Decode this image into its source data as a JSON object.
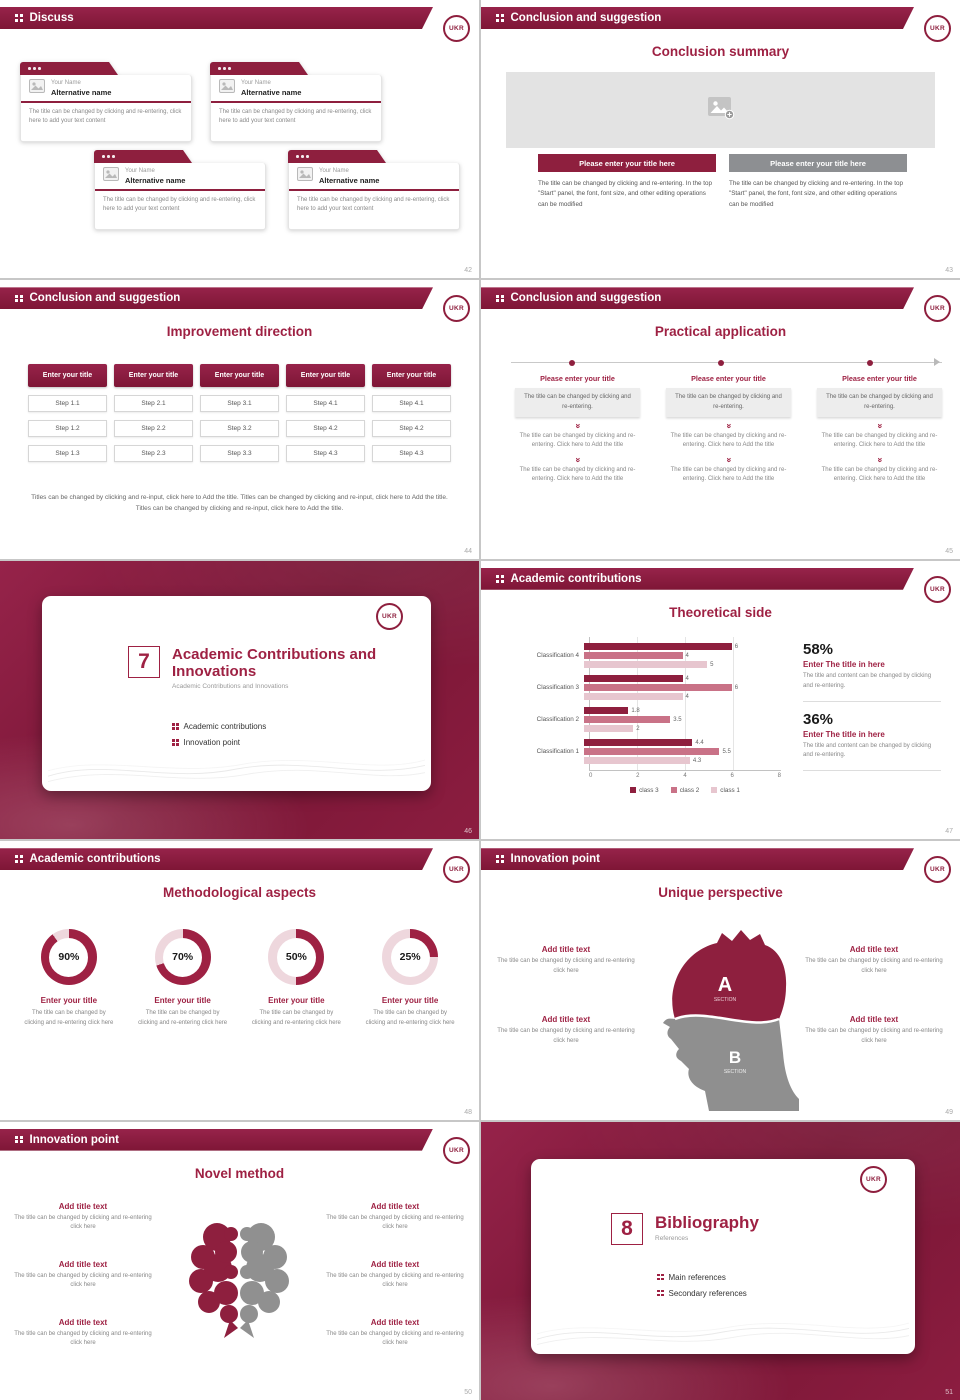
{
  "logo_text": "UKR",
  "colors": {
    "accent": "#9e2143",
    "header_maroon": "#8e1f3e",
    "button_gray": "#8d8f92",
    "donut_track": "#eed7dd",
    "bar_dark": "#8e1f3e",
    "bar_mid": "#c97287",
    "bar_light": "#e7c6cf"
  },
  "slide01": {
    "header": "Discuss",
    "page": "42",
    "card": {
      "name_label": "Your Name",
      "alt_name": "Alternative name",
      "body": "The title can be changed by clicking and re-entering, click here to add your text content"
    }
  },
  "slide02": {
    "header": "Conclusion and suggestion",
    "page": "43",
    "title": "Conclusion summary",
    "button_left": "Please enter your title here",
    "button_right": "Please enter your title here",
    "body": "The title can be changed by clicking and re-entering. In the top \"Start\" panel, the font, font size, and other editing operations can be modified"
  },
  "slide03": {
    "header": "Conclusion and suggestion",
    "page": "44",
    "title": "Improvement direction",
    "columns": [
      {
        "button": "Enter your title",
        "steps": [
          "Step 1.1",
          "Step 1.2",
          "Step 1.3"
        ]
      },
      {
        "button": "Enter your title",
        "steps": [
          "Step 2.1",
          "Step 2.2",
          "Step 2.3"
        ]
      },
      {
        "button": "Enter your title",
        "steps": [
          "Step 3.1",
          "Step 3.2",
          "Step 3.3"
        ]
      },
      {
        "button": "Enter your title",
        "steps": [
          "Step 4.1",
          "Step 4.2",
          "Step 4.3"
        ]
      },
      {
        "button": "Enter your title",
        "steps": [
          "Step 4.1",
          "Step 4.2",
          "Step 4.3"
        ]
      }
    ],
    "footer": "Titles can be changed by clicking and re-input, click here to Add the title. Titles can be changed by clicking and re-input, click here to Add the title. Titles can be changed by clicking and re-input, click here to Add the title."
  },
  "slide04": {
    "header": "Conclusion and suggestion",
    "page": "45",
    "title": "Practical application",
    "col_title": "Please enter your title",
    "col_box": "The title can be changed by clicking and re-entering.",
    "col_step": "The title can be changed by clicking and re-entering. Click here to Add the title"
  },
  "slide05": {
    "page": "46",
    "number": "7",
    "title": "Academic Contributions and Innovations",
    "subtitle": "Academic Contributions and Innovations",
    "bullets": [
      "Academic contributions",
      "Innovation point"
    ]
  },
  "slide06": {
    "header": "Academic contributions",
    "page": "47",
    "title": "Theoretical side",
    "stats": [
      {
        "pct": "58%",
        "title": "Enter The title in here",
        "body": "The title and content can be changed by clicking and re-entering."
      },
      {
        "pct": "36%",
        "title": "Enter The title in here",
        "body": "The title and content can be changed by clicking and re-entering."
      }
    ]
  },
  "slide07": {
    "header": "Academic contributions",
    "page": "48",
    "title": "Methodological aspects",
    "items": [
      {
        "pct": 90,
        "pct_label": "90%",
        "title": "Enter your title",
        "body": "The title can be changed by clicking and re-entering click here"
      },
      {
        "pct": 70,
        "pct_label": "70%",
        "title": "Enter your title",
        "body": "The title can be changed by clicking and re-entering click here"
      },
      {
        "pct": 50,
        "pct_label": "50%",
        "title": "Enter your title",
        "body": "The title can be changed by clicking and re-entering click here"
      },
      {
        "pct": 25,
        "pct_label": "25%",
        "title": "Enter your title",
        "body": "The title can be changed by clicking and re-entering click here"
      }
    ]
  },
  "slide08": {
    "header": "Innovation point",
    "page": "49",
    "title": "Unique perspective",
    "item_title": "Add title text",
    "item_body": "The title can be changed by clicking and re-entering click here",
    "section_a": "A",
    "section_b": "B",
    "section_label": "SECTION"
  },
  "slide09": {
    "header": "Innovation point",
    "page": "50",
    "title": "Novel method",
    "item_title": "Add title text",
    "item_body": "The title can be changed by clicking and re-entering click here"
  },
  "slide10": {
    "page": "51",
    "number": "8",
    "title": "Bibliography",
    "subtitle": "References",
    "bullets": [
      "Main references",
      "Secondary references"
    ]
  },
  "chart_data": [
    {
      "type": "bar",
      "orientation": "horizontal",
      "title": "Theoretical side",
      "categories": [
        "Classification 4",
        "Classification 3",
        "Classification 2",
        "Classification 1"
      ],
      "series": [
        {
          "name": "class 3",
          "color": "#8e1f3e",
          "values": [
            6,
            4,
            1.8,
            4.4
          ]
        },
        {
          "name": "class 2",
          "color": "#c97287",
          "values": [
            4,
            6,
            3.5,
            5.5
          ]
        },
        {
          "name": "class 1",
          "color": "#e7c6cf",
          "values": [
            5,
            4,
            2,
            4.3
          ]
        }
      ],
      "xlim": [
        0,
        8
      ],
      "xticks": [
        "0",
        "2",
        "4",
        "6",
        "8"
      ],
      "legend": [
        "class 3",
        "class 2",
        "class 1"
      ],
      "legend_position": "bottom",
      "grid": true
    },
    {
      "type": "pie",
      "subtype": "donut",
      "title": "Methodological aspects",
      "labels": [
        "Enter your title",
        "Enter your title",
        "Enter your title",
        "Enter your title"
      ],
      "values": [
        90,
        70,
        50,
        25
      ],
      "unit": "%"
    }
  ]
}
